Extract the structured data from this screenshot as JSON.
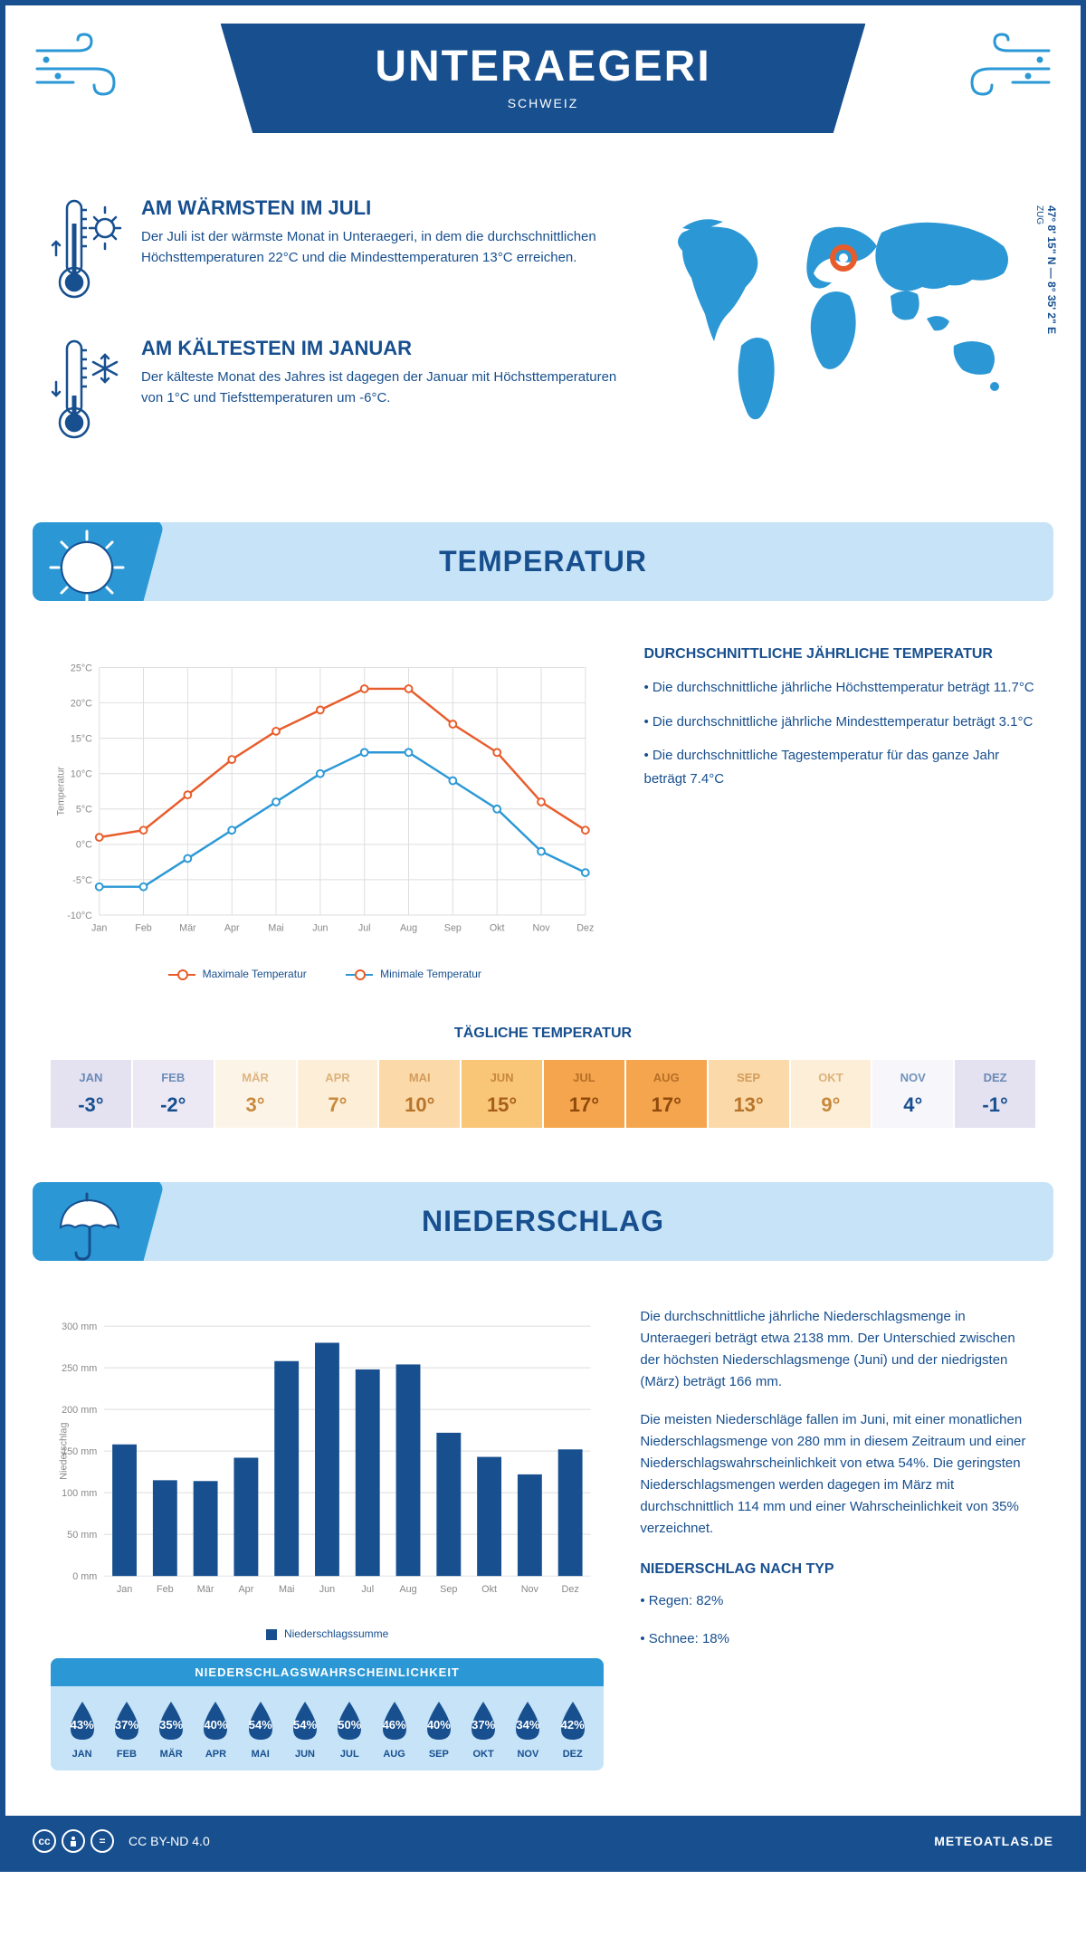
{
  "header": {
    "title": "UNTERAEGERI",
    "subtitle": "SCHWEIZ",
    "coords": "47° 8' 15\" N — 8° 35' 2\" E",
    "region": "ZUG"
  },
  "warmest": {
    "title": "AM WÄRMSTEN IM JULI",
    "text": "Der Juli ist der wärmste Monat in Unteraegeri, in dem die durchschnittlichen Höchsttemperaturen 22°C und die Mindesttemperaturen 13°C erreichen."
  },
  "coldest": {
    "title": "AM KÄLTESTEN IM JANUAR",
    "text": "Der kälteste Monat des Jahres ist dagegen der Januar mit Höchsttemperaturen von 1°C und Tiefsttemperaturen um -6°C."
  },
  "temperature": {
    "section_title": "TEMPERATUR",
    "info_title": "DURCHSCHNITTLICHE JÄHRLICHE TEMPERATUR",
    "bullet1": "• Die durchschnittliche jährliche Höchsttemperatur beträgt 11.7°C",
    "bullet2": "• Die durchschnittliche jährliche Mindesttemperatur beträgt 3.1°C",
    "bullet3": "• Die durchschnittliche Tagestemperatur für das ganze Jahr beträgt 7.4°C",
    "daily_title": "TÄGLICHE TEMPERATUR",
    "legend_max": "Maximale Temperatur",
    "legend_min": "Minimale Temperatur",
    "chart": {
      "months": [
        "Jan",
        "Feb",
        "Mär",
        "Apr",
        "Mai",
        "Jun",
        "Jul",
        "Aug",
        "Sep",
        "Okt",
        "Nov",
        "Dez"
      ],
      "max": [
        1,
        2,
        7,
        12,
        16,
        19,
        22,
        22,
        17,
        13,
        6,
        2
      ],
      "min": [
        -6,
        -6,
        -2,
        2,
        6,
        10,
        13,
        13,
        9,
        5,
        -1,
        -4
      ],
      "ylim": [
        -10,
        25
      ],
      "ytick_step": 5,
      "ylabel": "Temperatur",
      "max_color": "#e85c2b",
      "min_color": "#2b98d5",
      "grid_color": "#dddddd"
    },
    "daily": {
      "months": [
        "JAN",
        "FEB",
        "MÄR",
        "APR",
        "MAI",
        "JUN",
        "JUL",
        "AUG",
        "SEP",
        "OKT",
        "NOV",
        "DEZ"
      ],
      "values": [
        "-3°",
        "-2°",
        "3°",
        "7°",
        "10°",
        "15°",
        "17°",
        "17°",
        "13°",
        "9°",
        "4°",
        "-1°"
      ],
      "bg_colors": [
        "#e4e1f0",
        "#ece9f5",
        "#fdf4e8",
        "#fdeed8",
        "#fbd9a8",
        "#f9c576",
        "#f5a54e",
        "#f5a54e",
        "#fbd9a8",
        "#fdeed8",
        "#f7f6fb",
        "#e4e1f0"
      ],
      "text_colors": [
        "#174f8f",
        "#174f8f",
        "#c78a3d",
        "#c78a3d",
        "#b8742a",
        "#a65f1a",
        "#8f4a0c",
        "#8f4a0c",
        "#b8742a",
        "#c78a3d",
        "#174f8f",
        "#174f8f"
      ]
    }
  },
  "precipitation": {
    "section_title": "NIEDERSCHLAG",
    "para1": "Die durchschnittliche jährliche Niederschlagsmenge in Unteraegeri beträgt etwa 2138 mm. Der Unterschied zwischen der höchsten Niederschlagsmenge (Juni) und der niedrigsten (März) beträgt 166 mm.",
    "para2": "Die meisten Niederschläge fallen im Juni, mit einer monatlichen Niederschlagsmenge von 280 mm in diesem Zeitraum und einer Niederschlagswahrscheinlichkeit von etwa 54%. Die geringsten Niederschlagsmengen werden dagegen im März mit durchschnittlich 114 mm und einer Wahrscheinlichkeit von 35% verzeichnet.",
    "type_title": "NIEDERSCHLAG NACH TYP",
    "type_rain": "• Regen: 82%",
    "type_snow": "• Schnee: 18%",
    "chart": {
      "months": [
        "Jan",
        "Feb",
        "Mär",
        "Apr",
        "Mai",
        "Jun",
        "Jul",
        "Aug",
        "Sep",
        "Okt",
        "Nov",
        "Dez"
      ],
      "values": [
        158,
        115,
        114,
        142,
        258,
        280,
        248,
        254,
        172,
        143,
        122,
        152
      ],
      "ylim": [
        0,
        300
      ],
      "ytick_step": 50,
      "ylabel": "Niederschlag",
      "bar_color": "#174f8f",
      "legend": "Niederschlagssumme"
    },
    "probability": {
      "title": "NIEDERSCHLAGSWAHRSCHEINLICHKEIT",
      "months": [
        "JAN",
        "FEB",
        "MÄR",
        "APR",
        "MAI",
        "JUN",
        "JUL",
        "AUG",
        "SEP",
        "OKT",
        "NOV",
        "DEZ"
      ],
      "values": [
        "43%",
        "37%",
        "35%",
        "40%",
        "54%",
        "54%",
        "50%",
        "46%",
        "40%",
        "37%",
        "34%",
        "42%"
      ],
      "drop_color": "#174f8f"
    }
  },
  "footer": {
    "license": "CC BY-ND 4.0",
    "site": "METEOATLAS.DE"
  },
  "colors": {
    "primary": "#174f8f",
    "accent": "#2b98d5",
    "light": "#c6e3f7"
  }
}
